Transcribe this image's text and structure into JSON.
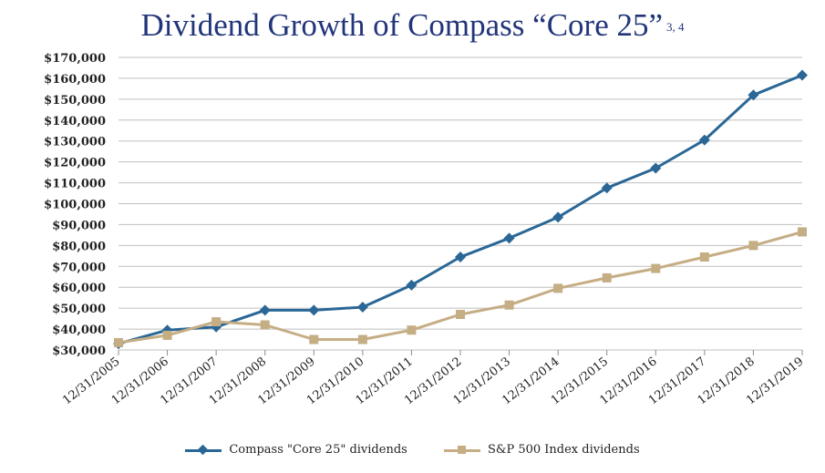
{
  "title": {
    "text": "Dividend Growth of Compass “Core 25”",
    "footnote": "3, 4"
  },
  "colors": {
    "title": "#22357a",
    "compass": "#2a6796",
    "sp500": "#c5ad84",
    "grid": "#bfbfbf"
  },
  "chart_data": {
    "type": "line",
    "x": [
      "12/31/2005",
      "12/31/2006",
      "12/31/2007",
      "12/31/2008",
      "12/31/2009",
      "12/31/2010",
      "12/31/2011",
      "12/31/2012",
      "12/31/2013",
      "12/31/2014",
      "12/31/2015",
      "12/31/2016",
      "12/31/2017",
      "12/31/2018",
      "12/31/2019"
    ],
    "series": [
      {
        "name": "Compass \"Core 25\" dividends",
        "marker": "diamond",
        "values": [
          33000,
          39500,
          41000,
          49000,
          49000,
          50500,
          61000,
          74500,
          83500,
          93500,
          107500,
          117000,
          130500,
          152000,
          161500
        ]
      },
      {
        "name": "S&P 500 Index dividends",
        "marker": "square",
        "values": [
          33500,
          37000,
          43500,
          42000,
          35000,
          35000,
          39500,
          47000,
          51500,
          59500,
          64500,
          69000,
          74500,
          80000,
          86500
        ]
      }
    ],
    "yticks": [
      "$30,000",
      "$40,000",
      "$50,000",
      "$60,000",
      "$70,000",
      "$80,000",
      "$90,000",
      "$100,000",
      "$110,000",
      "$120,000",
      "$130,000",
      "$140,000",
      "$150,000",
      "$160,000",
      "$170,000"
    ],
    "ylim": [
      30000,
      170000
    ],
    "grid": true,
    "legend_position": "bottom"
  }
}
